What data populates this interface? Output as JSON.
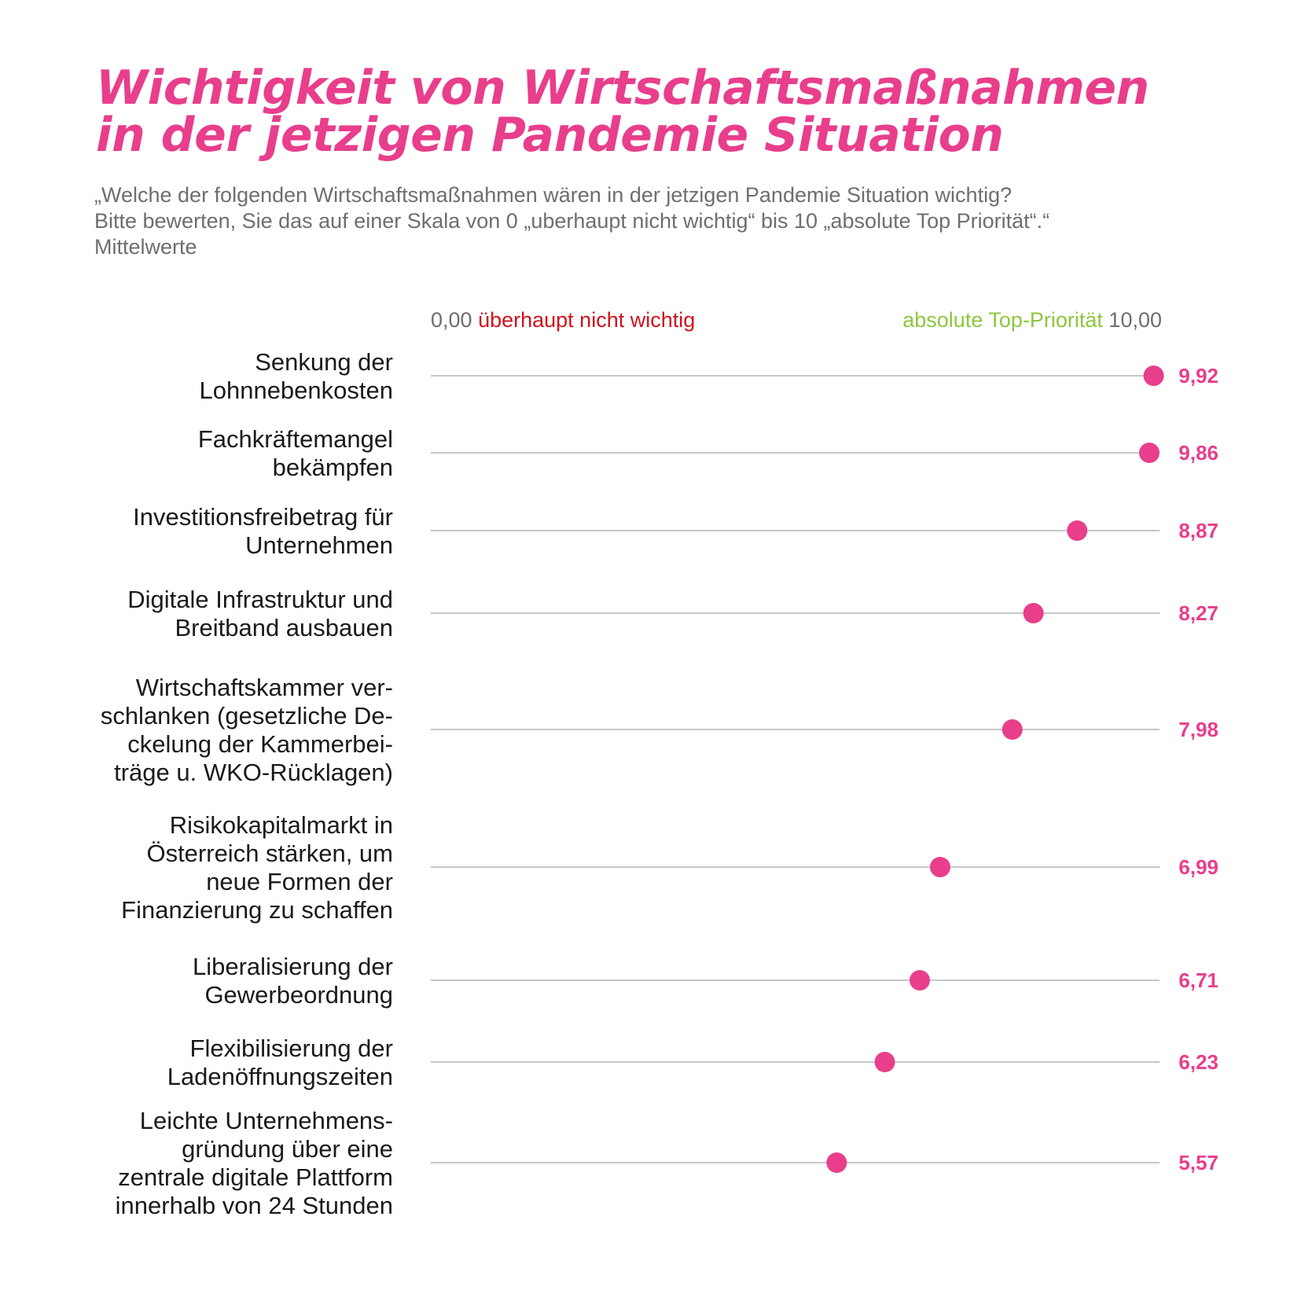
{
  "title": {
    "line1": "Wichtigkeit von Wirtschaftsmaßnahmen",
    "line2": "in der jetzigen Pandemie Situation"
  },
  "subtitle": {
    "line1": "„Welche der folgenden Wirtschaftsmaßnahmen wären in der jetzigen Pandemie Situation wichtig?",
    "line2": "Bitte bewerten, Sie das auf einer Skala von 0 „uberhaupt nicht wichtig“ bis 10 „absolute Top Priorität“.“",
    "line3": "Mittelwerte"
  },
  "scale": {
    "min_label": "0,00",
    "min_text": "überhaupt nicht wichtig",
    "max_text": "absolute Top-Priorität",
    "max_label": "10,00"
  },
  "colors": {
    "accent": "#e83e8c",
    "low": "#d0121b",
    "high": "#8dc63f",
    "line": "#b5b5b5"
  },
  "chart_data": {
    "type": "dot",
    "title": "Wichtigkeit von Wirtschaftsmaßnahmen in der jetzigen Pandemie Situation",
    "xlim": [
      0,
      10
    ],
    "grid": false,
    "categories": [
      [
        "Senkung der",
        "Lohnnebenkosten"
      ],
      [
        "Fachkräftemangel",
        "bekämpfen"
      ],
      [
        "Investitionsfreibetrag für",
        "Unternehmen"
      ],
      [
        "Digitale Infrastruktur und",
        "Breitband ausbauen"
      ],
      [
        "Wirtschaftskammer ver-",
        "schlanken (gesetzliche De-",
        "ckelung der Kammerbei-",
        "träge u. WKO-Rücklagen)"
      ],
      [
        "Risikokapitalmarkt in",
        "Österreich stärken, um",
        "neue Formen der",
        "Finanzierung zu schaffen"
      ],
      [
        "Liberalisierung der",
        "Gewerbeordnung"
      ],
      [
        "Flexibilisierung der",
        "Ladenöffnungszeiten"
      ],
      [
        "Leichte Unternehmens-",
        "gründung über eine",
        "zentrale digitale Plattform",
        "innerhalb von 24 Stunden"
      ]
    ],
    "values": [
      9.92,
      9.86,
      8.87,
      8.27,
      7.98,
      6.99,
      6.71,
      6.23,
      5.57
    ],
    "value_labels": [
      "9,92",
      "9,86",
      "8,87",
      "8,27",
      "7,98",
      "6,99",
      "6,71",
      "6,23",
      "5,57"
    ]
  }
}
